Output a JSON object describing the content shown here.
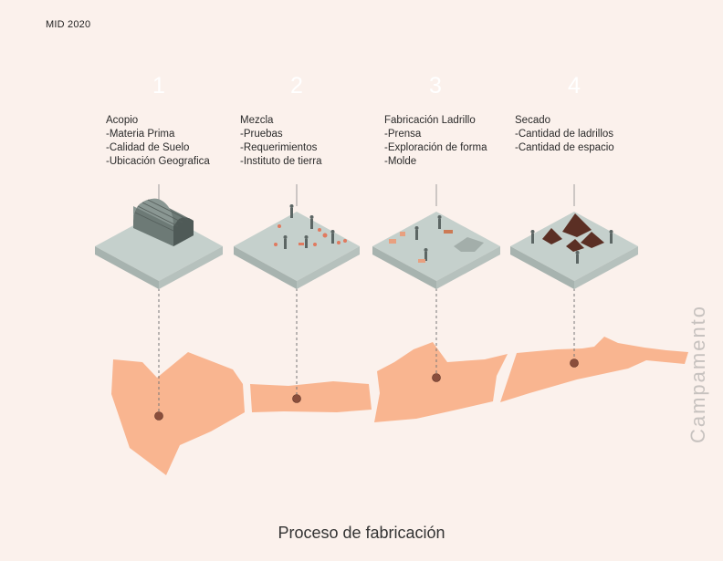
{
  "tag": "MID 2020",
  "steps": [
    {
      "number": "1",
      "title": "Acopio",
      "items": [
        "-Materia Prima",
        "-Calidad de Suelo",
        "-Ubicación Geografica"
      ]
    },
    {
      "number": "2",
      "title": "Mezcla",
      "items": [
        "-Pruebas",
        "-Requerimientos",
        "-Instituto de tierra"
      ]
    },
    {
      "number": "3",
      "title": "Fabricación Ladrillo",
      "items": [
        "-Prensa",
        "-Exploración de forma",
        "-Molde"
      ]
    },
    {
      "number": "4",
      "title": "Secado",
      "items": [
        "-Cantidad de ladrillos",
        "-Cantidad de espacio"
      ]
    }
  ],
  "title": "Proceso de fabricación",
  "side_label": "Campamento",
  "colors": {
    "background": "#fbf1ec",
    "land": "#f9b590",
    "platform_top": "#c5d0cc",
    "platform_side": "#a7b3af",
    "marker": "#8a4e3c"
  }
}
